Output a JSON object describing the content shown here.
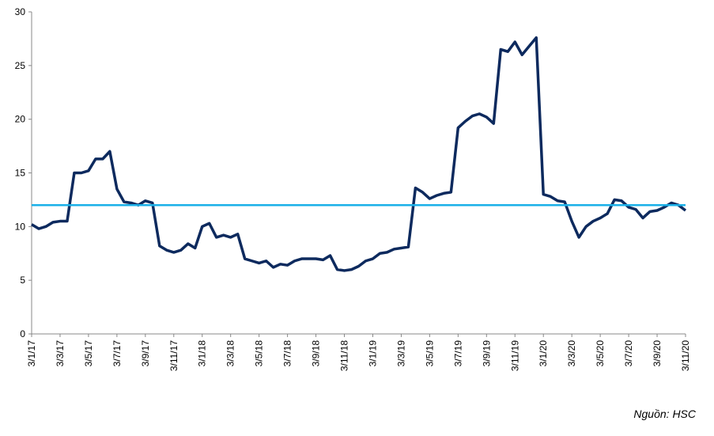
{
  "chart_data": {
    "type": "line",
    "categories": [
      "3/1/17",
      null,
      null,
      null,
      "3/3/17",
      null,
      null,
      null,
      "3/5/17",
      null,
      null,
      null,
      "3/7/17",
      null,
      null,
      null,
      "3/9/17",
      null,
      null,
      null,
      "3/11/17",
      null,
      null,
      null,
      "3/1/18",
      null,
      null,
      null,
      "3/3/18",
      null,
      null,
      null,
      "3/5/18",
      null,
      null,
      null,
      "3/7/18",
      null,
      null,
      null,
      "3/9/18",
      null,
      null,
      null,
      "3/11/18",
      null,
      null,
      null,
      "3/1/19",
      null,
      null,
      null,
      "3/3/19",
      null,
      null,
      null,
      "3/5/19",
      null,
      null,
      null,
      "3/7/19",
      null,
      null,
      null,
      "3/9/19",
      null,
      null,
      null,
      "3/11/19",
      null,
      null,
      null,
      "3/1/20",
      null,
      null,
      null,
      "3/3/20",
      null,
      null,
      null,
      "3/5/20",
      null,
      null,
      null,
      "3/7/20",
      null,
      null,
      null,
      "3/9/20",
      null,
      null,
      null,
      "3/11/20"
    ],
    "series": [
      {
        "color": "#0d2a5e",
        "values": [
          10.2,
          9.8,
          10.0,
          10.4,
          10.5,
          10.5,
          15.0,
          15.0,
          15.2,
          16.3,
          16.3,
          17.0,
          13.5,
          12.3,
          12.2,
          12.0,
          12.4,
          12.2,
          8.2,
          7.8,
          7.6,
          7.8,
          8.4,
          8.0,
          10.0,
          10.3,
          9.0,
          9.2,
          9.0,
          9.3,
          7.0,
          6.8,
          6.6,
          6.8,
          6.2,
          6.5,
          6.4,
          6.8,
          7.0,
          7.0,
          7.0,
          6.9,
          7.3,
          6.0,
          5.9,
          6.0,
          6.3,
          6.8,
          7.0,
          7.5,
          7.6,
          7.9,
          8.0,
          8.1,
          13.6,
          13.2,
          12.6,
          12.9,
          13.1,
          13.2,
          19.2,
          19.8,
          20.3,
          20.5,
          20.2,
          19.6,
          26.5,
          26.3,
          27.2,
          26.0,
          26.8,
          27.6,
          13.0,
          12.8,
          12.4,
          12.3,
          10.5,
          9.0,
          10.0,
          10.5,
          10.8,
          11.2,
          12.5,
          12.4,
          11.8,
          11.6,
          10.8,
          11.4,
          11.5,
          11.8,
          12.2,
          12.0,
          11.5
        ]
      }
    ],
    "reference_line": {
      "value": 12,
      "color": "#1ab0e8"
    },
    "ylim": [
      0,
      30
    ],
    "yticks": [
      0,
      5,
      10,
      15,
      20,
      25,
      30
    ],
    "annotation": "Nguồn: HSC"
  }
}
